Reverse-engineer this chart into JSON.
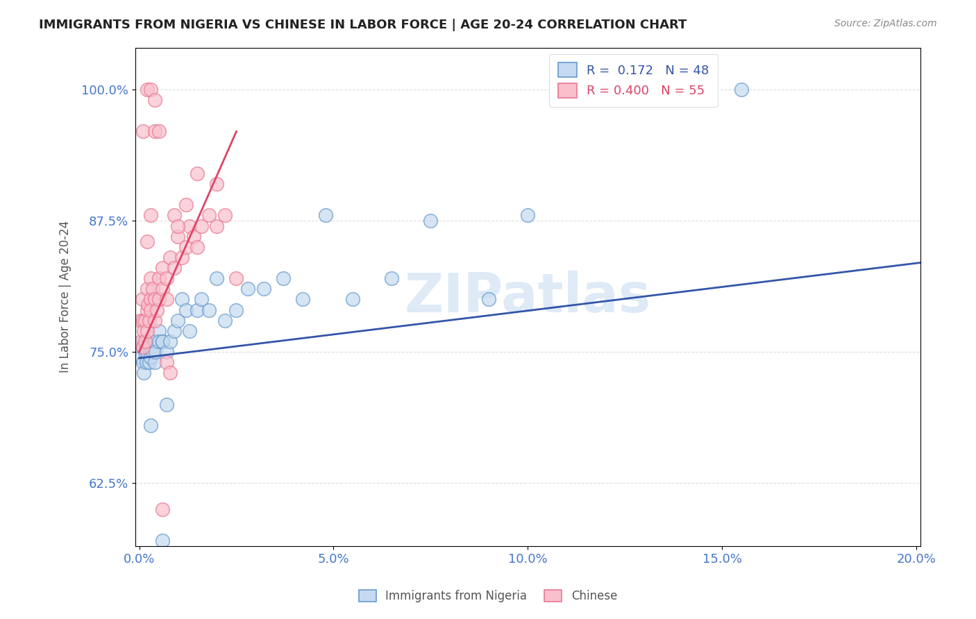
{
  "title": "IMMIGRANTS FROM NIGERIA VS CHINESE IN LABOR FORCE | AGE 20-24 CORRELATION CHART",
  "source": "Source: ZipAtlas.com",
  "xlabel_ticks": [
    "0.0%",
    "5.0%",
    "10.0%",
    "15.0%",
    "20.0%"
  ],
  "xlabel_vals": [
    0.0,
    0.05,
    0.1,
    0.15,
    0.2
  ],
  "ylabel": "In Labor Force | Age 20-24",
  "ylabel_ticks": [
    "62.5%",
    "75.0%",
    "87.5%",
    "100.0%"
  ],
  "ylabel_vals": [
    0.625,
    0.75,
    0.875,
    1.0
  ],
  "xlim": [
    -0.001,
    0.201
  ],
  "ylim": [
    0.565,
    1.04
  ],
  "nigeria_color": "#c5daf0",
  "chinese_color": "#f9c0cc",
  "nigeria_edge_color": "#6699cc",
  "chinese_edge_color": "#e87890",
  "nigeria_line_color": "#3355aa",
  "chinese_line_color": "#dd4466",
  "nigeria_R": 0.172,
  "nigeria_N": 48,
  "chinese_R": 0.4,
  "chinese_N": 55,
  "legend_label_nigeria": "Immigrants from Nigeria",
  "legend_label_chinese": "Chinese",
  "nigeria_x": [
    0.0005,
    0.0008,
    0.001,
    0.001,
    0.0012,
    0.0015,
    0.0018,
    0.002,
    0.002,
    0.0022,
    0.0025,
    0.003,
    0.003,
    0.0035,
    0.004,
    0.004,
    0.0042,
    0.005,
    0.005,
    0.006,
    0.006,
    0.007,
    0.008,
    0.009,
    0.01,
    0.011,
    0.012,
    0.013,
    0.015,
    0.016,
    0.018,
    0.02,
    0.022,
    0.025,
    0.028,
    0.032,
    0.037,
    0.042,
    0.048,
    0.055,
    0.065,
    0.075,
    0.09,
    0.1,
    0.155,
    0.007,
    0.003,
    0.006
  ],
  "nigeria_y": [
    0.745,
    0.755,
    0.74,
    0.76,
    0.73,
    0.75,
    0.74,
    0.76,
    0.75,
    0.755,
    0.74,
    0.755,
    0.745,
    0.75,
    0.74,
    0.76,
    0.75,
    0.77,
    0.76,
    0.76,
    0.76,
    0.75,
    0.76,
    0.77,
    0.78,
    0.8,
    0.79,
    0.77,
    0.79,
    0.8,
    0.79,
    0.82,
    0.78,
    0.79,
    0.81,
    0.81,
    0.82,
    0.8,
    0.88,
    0.8,
    0.82,
    0.875,
    0.8,
    0.88,
    1.0,
    0.7,
    0.68,
    0.57
  ],
  "chinese_x": [
    0.0003,
    0.0005,
    0.0008,
    0.001,
    0.001,
    0.0012,
    0.0015,
    0.0015,
    0.002,
    0.002,
    0.002,
    0.0022,
    0.0025,
    0.003,
    0.003,
    0.003,
    0.0035,
    0.004,
    0.004,
    0.0045,
    0.005,
    0.005,
    0.006,
    0.006,
    0.007,
    0.007,
    0.008,
    0.009,
    0.01,
    0.011,
    0.012,
    0.013,
    0.014,
    0.015,
    0.016,
    0.018,
    0.02,
    0.022,
    0.001,
    0.002,
    0.003,
    0.004,
    0.004,
    0.005,
    0.006,
    0.007,
    0.008,
    0.009,
    0.01,
    0.012,
    0.015,
    0.02,
    0.025,
    0.002,
    0.003
  ],
  "chinese_y": [
    0.78,
    0.76,
    0.8,
    0.755,
    0.78,
    0.77,
    0.76,
    0.78,
    0.81,
    0.79,
    0.77,
    0.795,
    0.78,
    0.82,
    0.8,
    0.79,
    0.81,
    0.78,
    0.8,
    0.79,
    0.8,
    0.82,
    0.83,
    0.81,
    0.82,
    0.8,
    0.84,
    0.83,
    0.86,
    0.84,
    0.85,
    0.87,
    0.86,
    0.85,
    0.87,
    0.88,
    0.87,
    0.88,
    0.96,
    1.0,
    1.0,
    0.99,
    0.96,
    0.96,
    0.6,
    0.74,
    0.73,
    0.88,
    0.87,
    0.89,
    0.92,
    0.91,
    0.82,
    0.855,
    0.88
  ],
  "background_color": "#ffffff",
  "grid_color": "#dddddd",
  "watermark": "ZIPatlas",
  "watermark_color": "#c8ddf0",
  "nigeria_trend_x0": 0.0,
  "nigeria_trend_x1": 0.201,
  "nigeria_trend_y0": 0.744,
  "nigeria_trend_y1": 0.835,
  "chinese_trend_x0": 0.0,
  "chinese_trend_x1": 0.025,
  "chinese_trend_y0": 0.75,
  "chinese_trend_y1": 0.96
}
